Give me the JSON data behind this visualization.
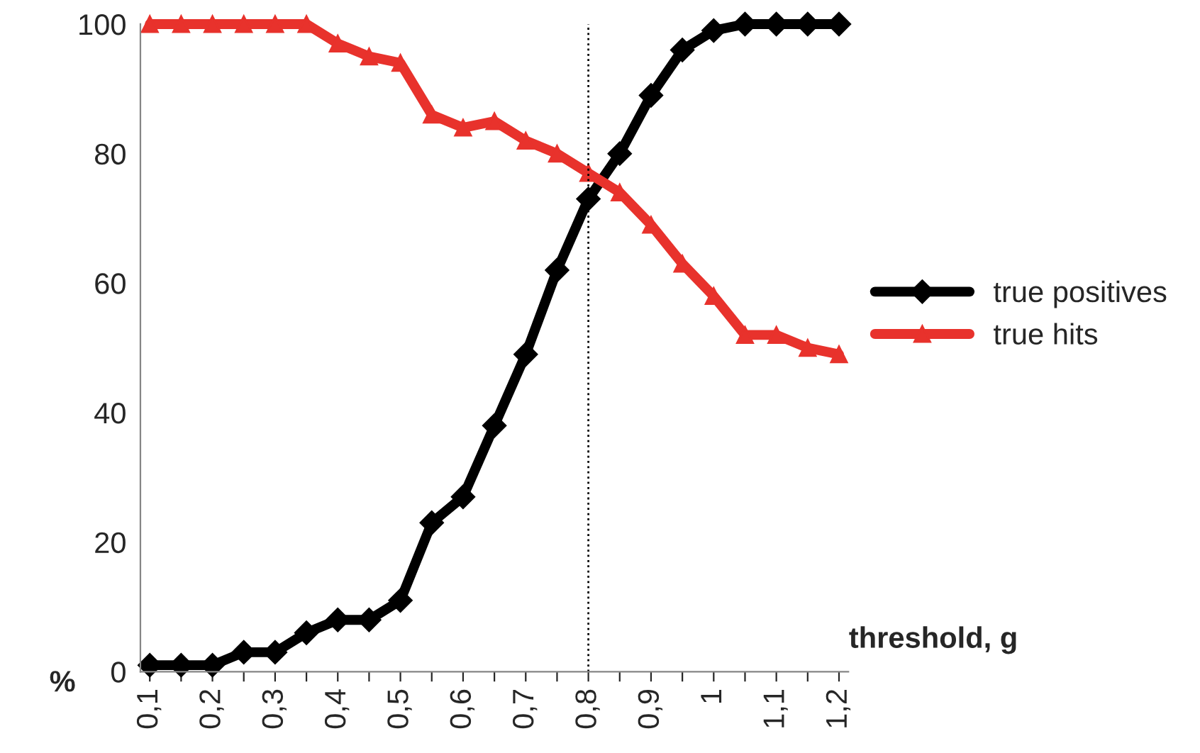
{
  "chart_data": {
    "type": "line",
    "categories": [
      "0,1",
      null,
      "0,2",
      null,
      "0,3",
      null,
      "0,4",
      null,
      "0,5",
      null,
      "0,6",
      null,
      "0,7",
      null,
      "0,8",
      null,
      "0,9",
      null,
      "1",
      null,
      "1,1",
      null,
      "1,2"
    ],
    "series": [
      {
        "name": "true positives",
        "color": "#000000",
        "marker": "diamond",
        "values": [
          1,
          1,
          1,
          3,
          3,
          6,
          8,
          8,
          11,
          23,
          27,
          38,
          49,
          62,
          73,
          80,
          89,
          96,
          99,
          100,
          100,
          100,
          100
        ]
      },
      {
        "name": "true hits",
        "color": "#e8322c",
        "marker": "triangle",
        "values": [
          100,
          100,
          100,
          100,
          100,
          100,
          97,
          95,
          94,
          86,
          84,
          85,
          82,
          80,
          77,
          74,
          69,
          63,
          58,
          52,
          52,
          50,
          49
        ]
      }
    ],
    "xlabel": "threshold, g",
    "ylabel": "%",
    "ylim": [
      0,
      100
    ],
    "yticks": [
      0,
      20,
      40,
      60,
      80,
      100
    ],
    "ref_lines": [
      {
        "axis": "x",
        "value": "0,8",
        "color": "#000000",
        "line_style": "dotted"
      }
    ],
    "grid": false,
    "legend": "right",
    "line_style": "solid"
  }
}
